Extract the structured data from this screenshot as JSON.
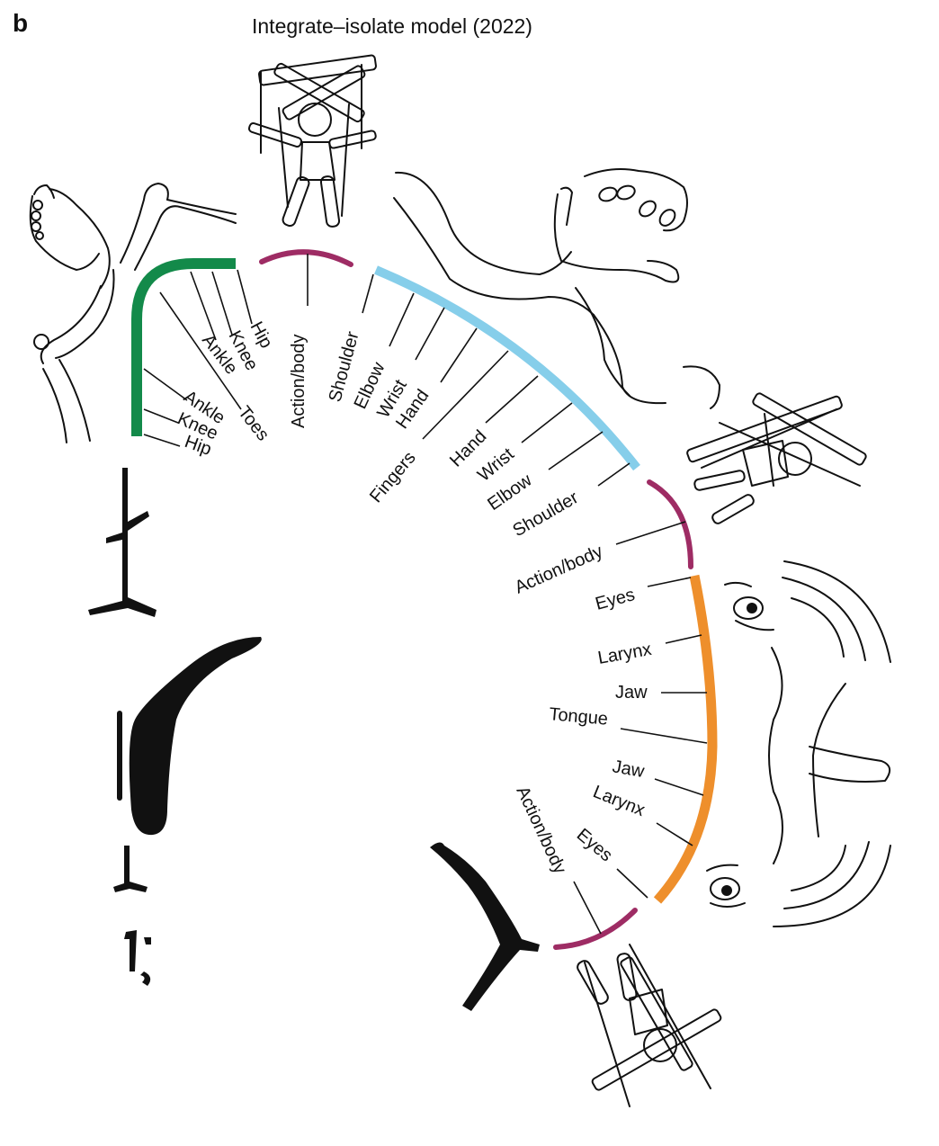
{
  "figure": {
    "panel_letter": "b",
    "title": "Integrate–isolate model (2022)"
  },
  "colors": {
    "foot": "#138a4a",
    "inter_effector": "#9e2c64",
    "hand": "#86ceea",
    "mouth": "#ee8f2c",
    "ink": "#111111"
  },
  "regions": {
    "foot": [
      "Hip",
      "Knee",
      "Ankle",
      "Toes",
      "Ankle",
      "Knee",
      "Hip"
    ],
    "action_top": "Action/body",
    "hand": [
      "Shoulder",
      "Elbow",
      "Wrist",
      "Hand",
      "Fingers",
      "Hand",
      "Wrist",
      "Elbow",
      "Shoulder"
    ],
    "action_mid": "Action/body",
    "mouth": [
      "Eyes",
      "Larynx",
      "Jaw",
      "Tongue",
      "Jaw",
      "Larynx",
      "Eyes"
    ],
    "action_bottom": "Action/body"
  },
  "icons": [
    "leg-illustration",
    "puppet-illustration",
    "arm-hand-illustration",
    "face-illustration",
    "brain-sulcus-shapes"
  ]
}
